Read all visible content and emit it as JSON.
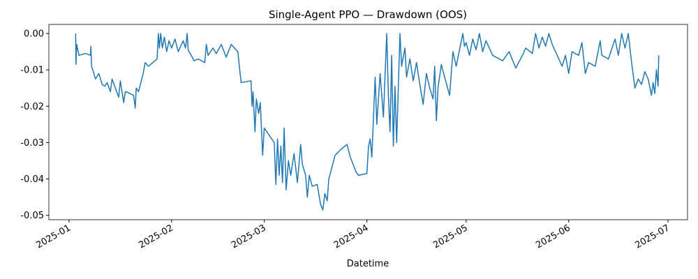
{
  "chart_data": {
    "type": "line",
    "title": "Single-Agent PPO — Drawdown (OOS)",
    "x_label": "Datetime",
    "x": [
      2,
      2.1,
      2.3,
      3,
      5,
      6.5,
      6.6,
      6.8,
      7.5,
      8,
      9,
      10,
      10.8,
      11.5,
      12.5,
      13,
      14,
      15,
      15.5,
      16.5,
      17,
      17.2,
      19.5,
      20,
      20.3,
      21,
      22.4,
      23,
      24,
      26.6,
      27,
      27.3,
      27.7,
      28.2,
      28.8,
      29.5,
      30.2,
      31,
      32,
      33,
      34.5,
      35.2,
      35.7,
      36,
      37.8,
      39,
      41,
      41.5,
      42,
      43.5,
      44.5,
      46,
      47.5,
      49,
      51,
      52,
      55,
      55.3,
      55.6,
      56.2,
      56.6,
      57.3,
      57.8,
      58.5,
      59,
      62,
      62.5,
      63,
      63.5,
      64,
      64.5,
      65,
      65.6,
      66.3,
      67,
      68,
      69,
      70,
      70.5,
      71.5,
      72,
      72.6,
      73.5,
      75,
      76,
      76.7,
      77.3,
      78,
      78.5,
      80.4,
      82,
      84,
      85,
      86.7,
      87.5,
      90,
      90.5,
      91,
      91.5,
      92.5,
      93,
      94,
      95,
      96,
      96.5,
      97,
      97.5,
      98,
      98.5,
      99,
      100,
      100.5,
      101.5,
      102,
      103,
      104,
      105,
      106,
      107,
      108,
      109,
      110,
      110.5,
      111,
      111.5,
      112.5,
      113.5,
      115,
      116,
      117,
      119,
      119.5,
      120,
      121,
      122,
      123,
      124,
      125,
      126,
      128,
      131,
      133,
      135,
      137,
      138,
      140,
      141,
      142,
      143,
      144,
      145,
      146,
      147,
      149,
      150,
      151,
      152,
      154,
      155,
      156,
      157,
      159,
      160.5,
      161,
      163,
      165,
      166,
      167,
      168,
      169,
      170,
      171,
      172,
      173,
      174,
      175,
      176,
      176.5,
      177,
      177.5,
      178,
      178.2
    ],
    "series": [
      {
        "name": "Drawdown",
        "color": "#1f77b4",
        "values": [
          0,
          -0.0085,
          -0.003,
          -0.006,
          -0.0055,
          -0.006,
          -0.0035,
          -0.009,
          -0.011,
          -0.0125,
          -0.011,
          -0.014,
          -0.0145,
          -0.0135,
          -0.016,
          -0.0125,
          -0.015,
          -0.0175,
          -0.013,
          -0.019,
          -0.016,
          -0.016,
          -0.017,
          -0.0205,
          -0.015,
          -0.016,
          -0.011,
          -0.008,
          -0.009,
          -0.007,
          0,
          -0.004,
          0,
          -0.004,
          -0.001,
          -0.005,
          -0.002,
          -0.004,
          -0.0015,
          -0.005,
          -0.002,
          -0.004,
          0,
          -0.0045,
          -0.0075,
          -0.007,
          -0.008,
          -0.003,
          -0.006,
          -0.004,
          -0.0055,
          -0.003,
          -0.0065,
          -0.003,
          -0.005,
          -0.0135,
          -0.013,
          -0.02,
          -0.016,
          -0.027,
          -0.018,
          -0.022,
          -0.019,
          -0.0335,
          -0.026,
          -0.03,
          -0.0415,
          -0.029,
          -0.039,
          -0.031,
          -0.041,
          -0.026,
          -0.043,
          -0.035,
          -0.039,
          -0.033,
          -0.041,
          -0.0305,
          -0.036,
          -0.039,
          -0.045,
          -0.039,
          -0.042,
          -0.0415,
          -0.047,
          -0.0485,
          -0.044,
          -0.046,
          -0.04,
          -0.0335,
          -0.032,
          -0.0305,
          -0.034,
          -0.038,
          -0.039,
          -0.0385,
          -0.031,
          -0.029,
          -0.034,
          -0.012,
          -0.025,
          -0.011,
          -0.023,
          0,
          -0.017,
          -0.027,
          -0.006,
          -0.031,
          -0.0145,
          -0.03,
          0,
          -0.009,
          -0.004,
          -0.012,
          -0.007,
          -0.013,
          -0.008,
          -0.014,
          -0.0195,
          -0.011,
          -0.015,
          -0.018,
          -0.009,
          -0.024,
          -0.015,
          -0.0085,
          -0.012,
          -0.017,
          -0.005,
          -0.009,
          0,
          -0.0035,
          -0.0025,
          -0.006,
          -0.0015,
          -0.0045,
          0,
          -0.005,
          -0.002,
          -0.006,
          -0.0075,
          -0.005,
          -0.0095,
          -0.006,
          -0.004,
          -0.0055,
          0,
          -0.004,
          -0.001,
          -0.0035,
          0,
          -0.003,
          -0.005,
          -0.009,
          -0.006,
          -0.011,
          -0.005,
          -0.006,
          -0.0025,
          -0.011,
          -0.008,
          -0.009,
          -0.002,
          -0.006,
          -0.007,
          -0.0015,
          -0.006,
          0,
          -0.004,
          0,
          -0.008,
          -0.015,
          -0.0125,
          -0.014,
          -0.0105,
          -0.0125,
          -0.017,
          -0.0135,
          -0.0165,
          -0.01,
          -0.0145,
          -0.006
        ]
      }
    ],
    "xlim": [
      -6.1,
      186.9
    ],
    "xticks": [
      {
        "value": 0,
        "label": "2025-01"
      },
      {
        "value": 31,
        "label": "2025-02"
      },
      {
        "value": 59,
        "label": "2025-03"
      },
      {
        "value": 90,
        "label": "2025-04"
      },
      {
        "value": 120,
        "label": "2025-05"
      },
      {
        "value": 151,
        "label": "2025-06"
      },
      {
        "value": 181,
        "label": "2025-07"
      }
    ],
    "ylim": [
      -0.0512,
      0.0025
    ],
    "yticks": [
      {
        "value": 0,
        "label": "0.00"
      },
      {
        "value": -0.01,
        "label": "-0.01"
      },
      {
        "value": -0.02,
        "label": "-0.02"
      },
      {
        "value": -0.03,
        "label": "-0.03"
      },
      {
        "value": -0.04,
        "label": "-0.04"
      },
      {
        "value": -0.05,
        "label": "-0.05"
      }
    ],
    "grid": false
  }
}
